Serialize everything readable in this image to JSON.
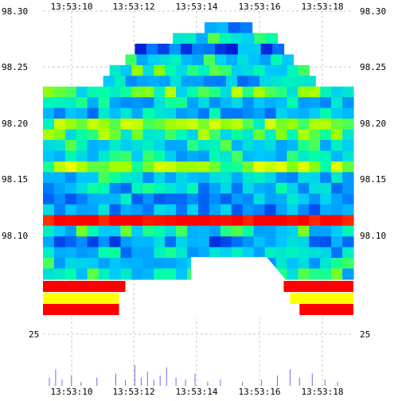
{
  "chart_data": {
    "type": "heatmap",
    "title": "",
    "xlabel": "",
    "ylabel": "",
    "x_ticks": [
      "13:53:10",
      "13:53:12",
      "13:53:14",
      "13:53:16",
      "13:53:18"
    ],
    "y_ticks": [
      98.1,
      98.15,
      98.2,
      98.25,
      98.3
    ],
    "y_tick_labels": [
      "98.10",
      "98.15",
      "98.20",
      "98.25",
      "98.30"
    ],
    "volume_tick_label": "25",
    "xlim": [
      "13:53:09.4",
      "13:53:19.2"
    ],
    "ylim": [
      98.055,
      98.3
    ],
    "grid": true,
    "colors": {
      "low": "#0000cc",
      "mid_low": "#00aaff",
      "mid": "#00ffaa",
      "mid_high": "#aaff00",
      "high": "#ffff00",
      "max": "#ff0000"
    },
    "rows": [
      {
        "price": 98.295,
        "start": "13:53:14.5",
        "end": "13:53:16.0",
        "level": 0.3
      },
      {
        "price": 98.285,
        "start": "13:53:13.5",
        "end": "13:53:16.8",
        "level": 0.45
      },
      {
        "price": 98.275,
        "start": "13:53:12.3",
        "end": "13:53:17.0",
        "level": 0.2
      },
      {
        "price": 98.265,
        "start": "13:53:12.0",
        "end": "13:53:17.3",
        "level": 0.4
      },
      {
        "price": 98.255,
        "start": "13:53:11.5",
        "end": "13:53:17.8",
        "level": 0.5
      },
      {
        "price": 98.245,
        "start": "13:53:11.3",
        "end": "13:53:18.0",
        "level": 0.3
      },
      {
        "price": 98.235,
        "start": "13:53:09.4",
        "end": "13:53:19.2",
        "level": 0.55
      },
      {
        "price": 98.225,
        "start": "13:53:09.4",
        "end": "13:53:19.2",
        "level": 0.4
      },
      {
        "price": 98.215,
        "start": "13:53:09.4",
        "end": "13:53:19.2",
        "level": 0.35
      },
      {
        "price": 98.205,
        "start": "13:53:09.4",
        "end": "13:53:19.2",
        "level": 0.6
      },
      {
        "price": 98.195,
        "start": "13:53:09.4",
        "end": "13:53:19.2",
        "level": 0.55
      },
      {
        "price": 98.185,
        "start": "13:53:09.4",
        "end": "13:53:19.2",
        "level": 0.45
      },
      {
        "price": 98.175,
        "start": "13:53:09.4",
        "end": "13:53:19.2",
        "level": 0.4
      },
      {
        "price": 98.165,
        "start": "13:53:09.4",
        "end": "13:53:19.2",
        "level": 0.65
      },
      {
        "price": 98.155,
        "start": "13:53:09.4",
        "end": "13:53:19.2",
        "level": 0.4
      },
      {
        "price": 98.145,
        "start": "13:53:09.4",
        "end": "13:53:19.2",
        "level": 0.35
      },
      {
        "price": 98.135,
        "start": "13:53:09.4",
        "end": "13:53:19.2",
        "level": 0.3
      },
      {
        "price": 98.125,
        "start": "13:53:09.4",
        "end": "13:53:19.2",
        "level": 0.3
      },
      {
        "price": 98.115,
        "start": "13:53:09.4",
        "end": "13:53:19.2",
        "level": 1.0
      },
      {
        "price": 98.105,
        "start": "13:53:09.4",
        "end": "13:53:19.2",
        "level": 0.45
      },
      {
        "price": 98.095,
        "start": "13:53:09.4",
        "end": "13:53:19.2",
        "level": 0.25
      },
      {
        "price": 98.085,
        "start": "13:53:09.4",
        "end": "13:53:19.2",
        "level": 0.35
      },
      {
        "price": 98.075,
        "start": "13:53:09.4",
        "end": "13:53:19.2",
        "level": 0.4
      },
      {
        "price": 98.065,
        "start": "13:53:09.4",
        "end": "13:53:19.2",
        "level": 0.45
      }
    ],
    "bottom_bands": [
      {
        "label": "red-left",
        "start": "13:53:09.4",
        "end": "13:53:12.0",
        "level": 1.0
      },
      {
        "label": "red-right",
        "start": "13:53:17.0",
        "end": "13:53:19.2",
        "level": 1.0
      },
      {
        "label": "yellow-left",
        "start": "13:53:09.4",
        "end": "13:53:11.8",
        "level": 0.85
      },
      {
        "label": "yellow-right",
        "start": "13:53:17.2",
        "end": "13:53:19.2",
        "level": 0.85
      },
      {
        "label": "red-left-2",
        "start": "13:53:09.4",
        "end": "13:53:11.8",
        "level": 1.0
      },
      {
        "label": "red-right-2",
        "start": "13:53:17.5",
        "end": "13:53:19.2",
        "level": 1.0
      }
    ],
    "volume": [
      {
        "t": "13:53:09.6",
        "v": 4
      },
      {
        "t": "13:53:09.8",
        "v": 8
      },
      {
        "t": "13:53:10.0",
        "v": 3
      },
      {
        "t": "13:53:10.3",
        "v": 5
      },
      {
        "t": "13:53:10.6",
        "v": 2
      },
      {
        "t": "13:53:11.1",
        "v": 4
      },
      {
        "t": "13:53:11.7",
        "v": 6
      },
      {
        "t": "13:53:12.0",
        "v": 3
      },
      {
        "t": "13:53:12.3",
        "v": 10
      },
      {
        "t": "13:53:12.5",
        "v": 4
      },
      {
        "t": "13:53:12.7",
        "v": 7
      },
      {
        "t": "13:53:12.9",
        "v": 3
      },
      {
        "t": "13:53:13.1",
        "v": 5
      },
      {
        "t": "13:53:13.3",
        "v": 9
      },
      {
        "t": "13:53:13.6",
        "v": 4
      },
      {
        "t": "13:53:13.9",
        "v": 3
      },
      {
        "t": "13:53:14.2",
        "v": 6
      },
      {
        "t": "13:53:14.6",
        "v": 2
      },
      {
        "t": "13:53:15.0",
        "v": 3
      },
      {
        "t": "13:53:15.7",
        "v": 2
      },
      {
        "t": "13:53:16.3",
        "v": 3
      },
      {
        "t": "13:53:16.8",
        "v": 5
      },
      {
        "t": "13:53:17.2",
        "v": 8
      },
      {
        "t": "13:53:17.5",
        "v": 4
      },
      {
        "t": "13:53:17.9",
        "v": 6
      },
      {
        "t": "13:53:18.3",
        "v": 3
      },
      {
        "t": "13:53:18.7",
        "v": 2
      }
    ]
  }
}
